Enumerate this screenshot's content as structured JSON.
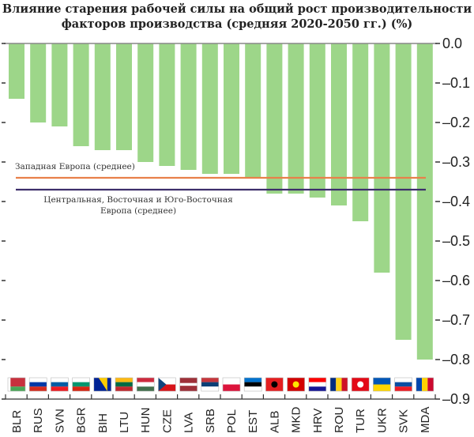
{
  "chart_data": {
    "type": "bar",
    "title": "Влияние старения рабочей силы на общий рост производительности факторов производства (средняя 2020-2050 гг.) (%)",
    "title_lines": [
      "Влияние старения рабочей силы на общий рост производительности",
      "факторов производства (средняя 2020-2050 гг.) (%)"
    ],
    "xlabel": "",
    "ylabel": "",
    "categories": [
      "BLR",
      "RUS",
      "SVN",
      "BGR",
      "BIH",
      "LTU",
      "HUN",
      "CZE",
      "LVA",
      "SRB",
      "POL",
      "EST",
      "ALB",
      "MKD",
      "HRV",
      "ROU",
      "TUR",
      "UKR",
      "SVK",
      "MDA"
    ],
    "series": [
      {
        "name": "Влияние старения",
        "color": "#9dd689",
        "values": [
          -0.14,
          -0.2,
          -0.21,
          -0.26,
          -0.27,
          -0.27,
          -0.3,
          -0.31,
          -0.32,
          -0.33,
          -0.33,
          -0.34,
          -0.38,
          -0.38,
          -0.39,
          -0.41,
          -0.45,
          -0.58,
          -0.75,
          -0.8
        ]
      }
    ],
    "ylim": [
      -0.9,
      0.0
    ],
    "yticks": [
      0.0,
      -0.1,
      -0.2,
      -0.3,
      -0.4,
      -0.5,
      -0.6,
      -0.7,
      -0.8,
      -0.9
    ],
    "ytick_labels": [
      "0.0",
      "–0.1",
      "–0.2",
      "–0.3",
      "–0.4",
      "–0.5",
      "–0.6",
      "–0.7",
      "–0.8",
      "–0.9"
    ],
    "y_axis_side": "right",
    "grid": false,
    "reference_lines": [
      {
        "name": "Западная Европа (среднее)",
        "label_lines": [
          "Западная Европа (среднее)"
        ],
        "value": -0.34,
        "color": "#e8804a"
      },
      {
        "name": "Центральная, Восточная и Юго-Восточная Европа (среднее)",
        "label_lines": [
          "Центральная, Восточная и Юго-Восточная",
          "Европа (среднее)"
        ],
        "value": -0.37,
        "color": "#3d2f6b"
      }
    ],
    "category_flags": true
  }
}
